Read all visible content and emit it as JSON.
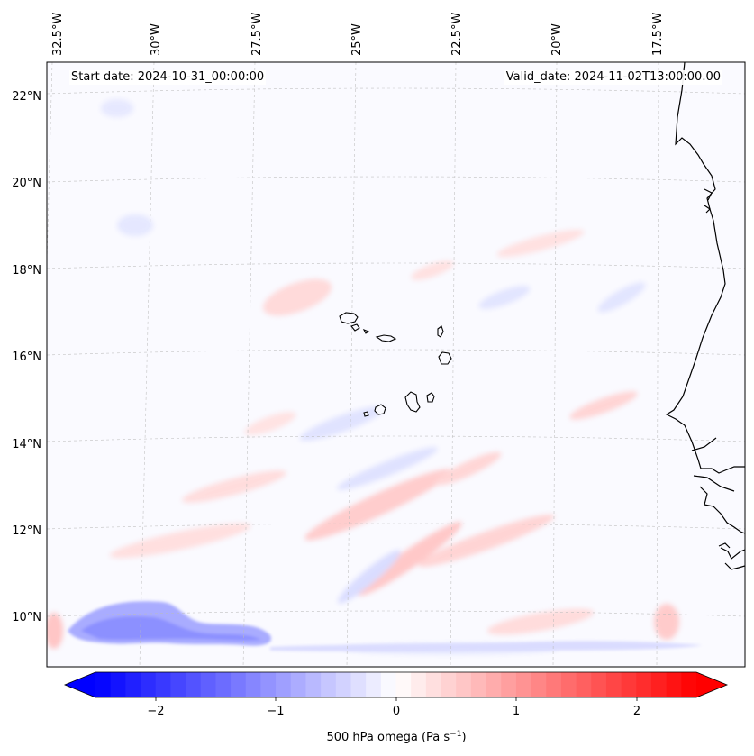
{
  "header": {
    "start_date": "Start date: 2024-10-31_00:00:00",
    "valid_date": "Valid_date: 2024-11-02T13:00:00.00"
  },
  "map": {
    "projection": "lambert-conformal",
    "gridlines": true,
    "lon_labels": [
      "32.5°W",
      "30°W",
      "27.5°W",
      "25°W",
      "22.5°W",
      "20°W",
      "17.5°W"
    ],
    "lat_labels": [
      "22°N",
      "20°N",
      "18°N",
      "16°N",
      "14°N",
      "12°N",
      "10°N"
    ],
    "field": "500 hPa omega",
    "units": "Pa s⁻¹",
    "features": [
      "cabo-verde-islands",
      "west-africa-coastline"
    ]
  },
  "colorbar": {
    "label": "500 hPa omega (Pa s$^{-1}$)",
    "label_main": "500 hPa omega (Pa s",
    "label_exp": "−1",
    "label_close": ")",
    "ticks": [
      "−2",
      "−1",
      "0",
      "1",
      "2"
    ],
    "range": [
      -2.6,
      2.6
    ],
    "extend": "both",
    "colormap": "bwr",
    "color_min": "#0000ff",
    "color_mid": "#ffffff",
    "color_max": "#ff0000"
  }
}
